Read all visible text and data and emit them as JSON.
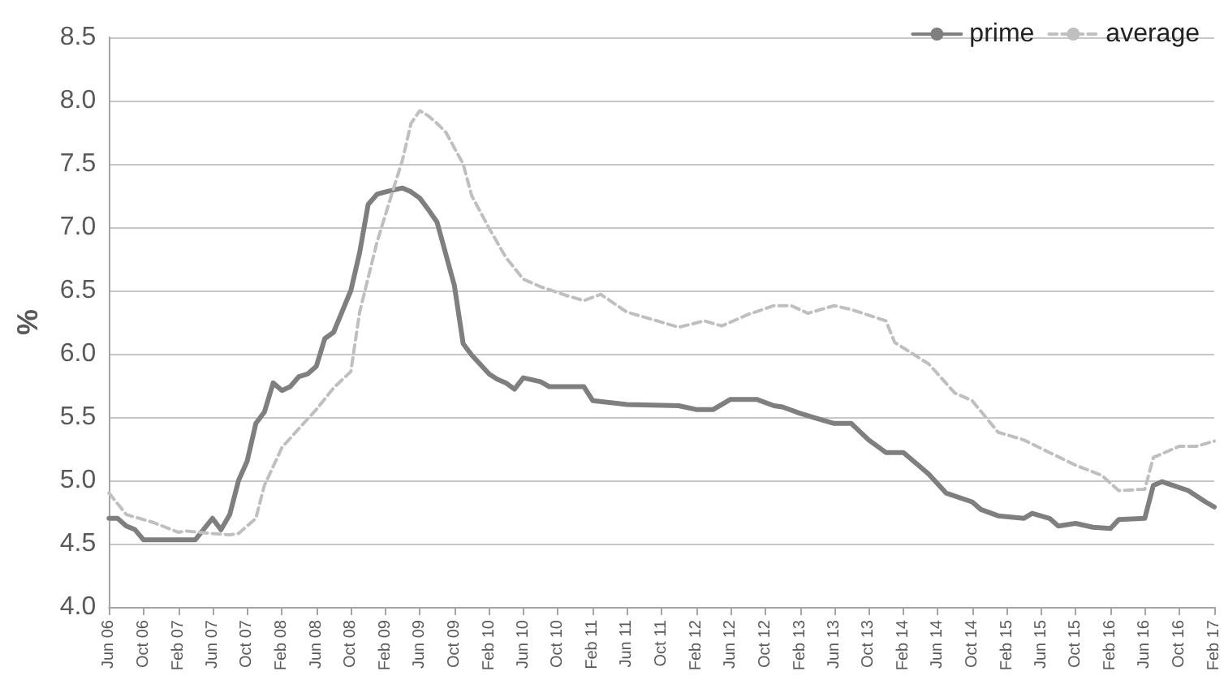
{
  "chart_data": {
    "type": "line",
    "ylabel": "%",
    "legend": "top right",
    "grid": "y",
    "marker": "none",
    "xlim": [
      "2006-06",
      "2017-02"
    ],
    "ylim": [
      4.0,
      8.5
    ],
    "yticks": [
      {
        "value": 4,
        "label": "4.0"
      },
      {
        "value": 4.5,
        "label": "4.5"
      },
      {
        "value": 5,
        "label": "5.0"
      },
      {
        "value": 5.5,
        "label": "5.5"
      },
      {
        "value": 6,
        "label": "6.0"
      },
      {
        "value": 6.5,
        "label": "6.5"
      },
      {
        "value": 7,
        "label": "7.0"
      },
      {
        "value": 7.5,
        "label": "7.5"
      },
      {
        "value": 8,
        "label": "8.0"
      },
      {
        "value": 8.5,
        "label": "8.5"
      }
    ],
    "xticks": [
      {
        "value": "2006-06",
        "label": "Jun 06"
      },
      {
        "value": "2006-10",
        "label": "Oct 06"
      },
      {
        "value": "2007-02",
        "label": "Feb 07"
      },
      {
        "value": "2007-06",
        "label": "Jun 07"
      },
      {
        "value": "2007-10",
        "label": "Oct 07"
      },
      {
        "value": "2008-02",
        "label": "Feb 08"
      },
      {
        "value": "2008-06",
        "label": "Jun 08"
      },
      {
        "value": "2008-10",
        "label": "Oct 08"
      },
      {
        "value": "2009-02",
        "label": "Feb 09"
      },
      {
        "value": "2009-06",
        "label": "Jun 09"
      },
      {
        "value": "2009-10",
        "label": "Oct 09"
      },
      {
        "value": "2010-02",
        "label": "Feb 10"
      },
      {
        "value": "2010-06",
        "label": "Jun 10"
      },
      {
        "value": "2010-10",
        "label": "Oct 10"
      },
      {
        "value": "2011-02",
        "label": "Feb 11"
      },
      {
        "value": "2011-06",
        "label": "Jun 11"
      },
      {
        "value": "2011-10",
        "label": "Oct 11"
      },
      {
        "value": "2012-02",
        "label": "Feb 12"
      },
      {
        "value": "2012-06",
        "label": "Jun 12"
      },
      {
        "value": "2012-10",
        "label": "Oct 12"
      },
      {
        "value": "2013-02",
        "label": "Feb 13"
      },
      {
        "value": "2013-06",
        "label": "Jun 13"
      },
      {
        "value": "2013-10",
        "label": "Oct 13"
      },
      {
        "value": "2014-02",
        "label": "Feb 14"
      },
      {
        "value": "2014-06",
        "label": "Jun 14"
      },
      {
        "value": "2014-10",
        "label": "Oct 14"
      },
      {
        "value": "2015-02",
        "label": "Feb 15"
      },
      {
        "value": "2015-06",
        "label": "Jun 15"
      },
      {
        "value": "2015-10",
        "label": "Oct 15"
      },
      {
        "value": "2016-02",
        "label": "Feb 16"
      },
      {
        "value": "2016-06",
        "label": "Jun 16"
      },
      {
        "value": "2016-10",
        "label": "Oct 16"
      },
      {
        "value": "2017-02",
        "label": "Feb 17"
      }
    ],
    "series": [
      {
        "name": "prime",
        "color": "#7f7f7f",
        "line_style": "solid",
        "x": [
          "2006-06",
          "2006-07",
          "2006-08",
          "2006-09",
          "2006-10",
          "2007-04",
          "2007-06",
          "2007-07",
          "2007-08",
          "2007-09",
          "2007-10",
          "2007-11",
          "2007-12",
          "2008-01",
          "2008-02",
          "2008-03",
          "2008-04",
          "2008-05",
          "2008-06",
          "2008-07",
          "2008-08",
          "2008-10",
          "2008-11",
          "2008-12",
          "2009-01",
          "2009-02",
          "2009-04",
          "2009-05",
          "2009-06",
          "2009-07",
          "2009-08",
          "2009-10",
          "2009-11",
          "2009-12",
          "2010-02",
          "2010-03",
          "2010-04",
          "2010-05",
          "2010-06",
          "2010-08",
          "2010-09",
          "2011-01",
          "2011-02",
          "2011-06",
          "2011-12",
          "2012-02",
          "2012-04",
          "2012-06",
          "2012-09",
          "2012-11",
          "2012-12",
          "2013-02",
          "2013-04",
          "2013-06",
          "2013-08",
          "2013-10",
          "2013-12",
          "2014-02",
          "2014-05",
          "2014-07",
          "2014-10",
          "2014-11",
          "2015-01",
          "2015-04",
          "2015-05",
          "2015-07",
          "2015-08",
          "2015-10",
          "2015-12",
          "2016-02",
          "2016-03",
          "2016-06",
          "2016-07",
          "2016-08",
          "2016-11",
          "2017-01",
          "2017-02"
        ],
        "values": [
          4.7,
          4.7,
          4.64,
          4.61,
          4.53,
          4.53,
          4.7,
          4.61,
          4.73,
          5.0,
          5.15,
          5.45,
          5.54,
          5.77,
          5.71,
          5.74,
          5.82,
          5.84,
          5.9,
          6.12,
          6.17,
          6.5,
          6.8,
          7.18,
          7.26,
          7.28,
          7.31,
          7.28,
          7.23,
          7.14,
          7.04,
          6.54,
          6.08,
          5.99,
          5.84,
          5.8,
          5.77,
          5.72,
          5.81,
          5.78,
          5.74,
          5.74,
          5.63,
          5.6,
          5.59,
          5.56,
          5.56,
          5.64,
          5.64,
          5.59,
          5.58,
          5.53,
          5.49,
          5.45,
          5.45,
          5.32,
          5.22,
          5.22,
          5.05,
          4.9,
          4.83,
          4.77,
          4.72,
          4.7,
          4.74,
          4.7,
          4.64,
          4.66,
          4.63,
          4.62,
          4.69,
          4.7,
          4.96,
          4.99,
          4.92,
          4.83,
          4.79
        ]
      },
      {
        "name": "average",
        "color": "#bfbfbf",
        "line_style": "dashed",
        "x": [
          "2006-06",
          "2006-08",
          "2006-11",
          "2007-02",
          "2007-03",
          "2007-06",
          "2007-08",
          "2007-09",
          "2007-11",
          "2007-12",
          "2008-02",
          "2008-04",
          "2008-06",
          "2008-08",
          "2008-10",
          "2008-11",
          "2009-01",
          "2009-03",
          "2009-04",
          "2009-05",
          "2009-06",
          "2009-07",
          "2009-08",
          "2009-09",
          "2009-11",
          "2009-12",
          "2010-02",
          "2010-04",
          "2010-06",
          "2010-08",
          "2010-11",
          "2011-01",
          "2011-03",
          "2011-06",
          "2011-09",
          "2011-12",
          "2012-03",
          "2012-05",
          "2012-08",
          "2012-11",
          "2013-01",
          "2013-03",
          "2013-06",
          "2013-08",
          "2013-12",
          "2014-01",
          "2014-05",
          "2014-08",
          "2014-10",
          "2015-01",
          "2015-04",
          "2015-07",
          "2015-10",
          "2016-01",
          "2016-03",
          "2016-06",
          "2016-07",
          "2016-10",
          "2016-12",
          "2017-02"
        ],
        "values": [
          4.9,
          4.73,
          4.67,
          4.59,
          4.6,
          4.58,
          4.57,
          4.58,
          4.7,
          4.96,
          5.26,
          5.41,
          5.56,
          5.73,
          5.86,
          6.33,
          6.88,
          7.31,
          7.53,
          7.82,
          7.92,
          7.88,
          7.82,
          7.75,
          7.5,
          7.25,
          6.99,
          6.76,
          6.59,
          6.53,
          6.46,
          6.42,
          6.47,
          6.33,
          6.27,
          6.21,
          6.26,
          6.22,
          6.31,
          6.38,
          6.38,
          6.32,
          6.38,
          6.35,
          6.26,
          6.09,
          5.92,
          5.69,
          5.63,
          5.38,
          5.32,
          5.22,
          5.12,
          5.04,
          4.92,
          4.93,
          5.18,
          5.27,
          5.27,
          5.31
        ]
      }
    ]
  }
}
